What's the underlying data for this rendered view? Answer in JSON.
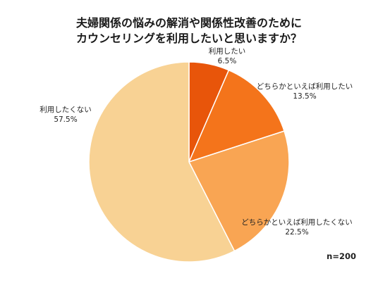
{
  "chart_data": {
    "type": "pie",
    "title_lines": [
      "夫婦関係の悩みの解消や関係性改善のために",
      "カウンセリングを利用したいと思いますか？"
    ],
    "note": "n=200",
    "start_angle_deg": 0,
    "direction": "clockwise",
    "slices": [
      {
        "label": "利用したい",
        "value": 6.5,
        "display": "6.5%",
        "color": "#E8550A"
      },
      {
        "label": "どちらかといえば利用したい",
        "value": 13.5,
        "display": "13.5%",
        "color": "#F4741B"
      },
      {
        "label": "どちらかといえば利用したくない",
        "value": 22.5,
        "display": "22.5%",
        "color": "#F9A553"
      },
      {
        "label": "利用したくない",
        "value": 57.5,
        "display": "57.5%",
        "color": "#F8D294"
      }
    ]
  }
}
